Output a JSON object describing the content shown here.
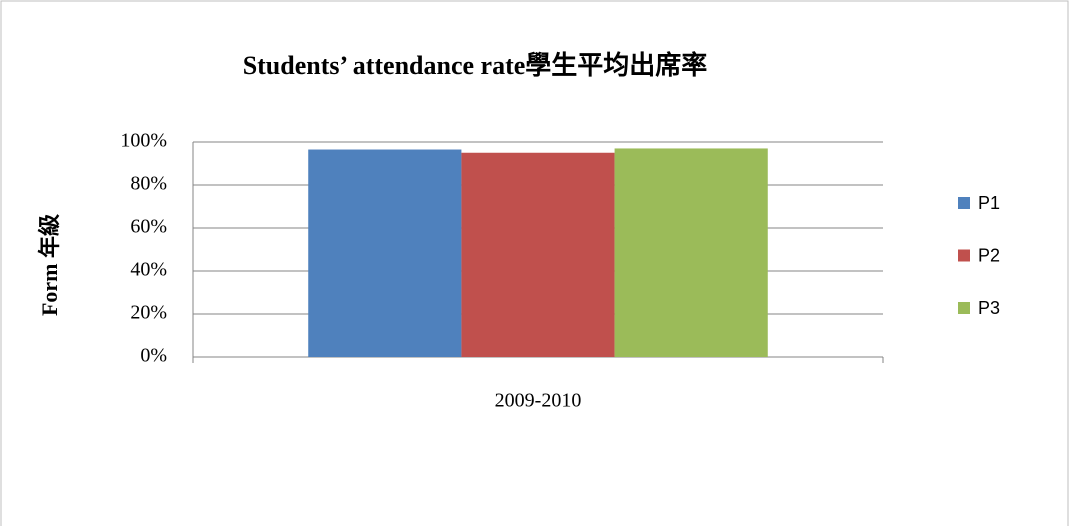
{
  "chart_data": {
    "type": "bar",
    "title": "Students’ attendance rate學生平均出席率",
    "y_label": "Form 年級",
    "categories": [
      "2009-2010"
    ],
    "series": [
      {
        "name": "P1",
        "color": "#4f81bd",
        "values": [
          96.5
        ]
      },
      {
        "name": "P2",
        "color": "#c0504d",
        "values": [
          95
        ]
      },
      {
        "name": "P3",
        "color": "#9bbb59",
        "values": [
          97
        ]
      }
    ],
    "ylim": [
      0,
      100
    ],
    "yticks": [
      {
        "value": 0,
        "label": "0%"
      },
      {
        "value": 20,
        "label": "20%"
      },
      {
        "value": 40,
        "label": "40%"
      },
      {
        "value": 60,
        "label": "60%"
      },
      {
        "value": 80,
        "label": "80%"
      },
      {
        "value": 100,
        "label": "100%"
      }
    ],
    "grid": true,
    "legend": "right"
  }
}
